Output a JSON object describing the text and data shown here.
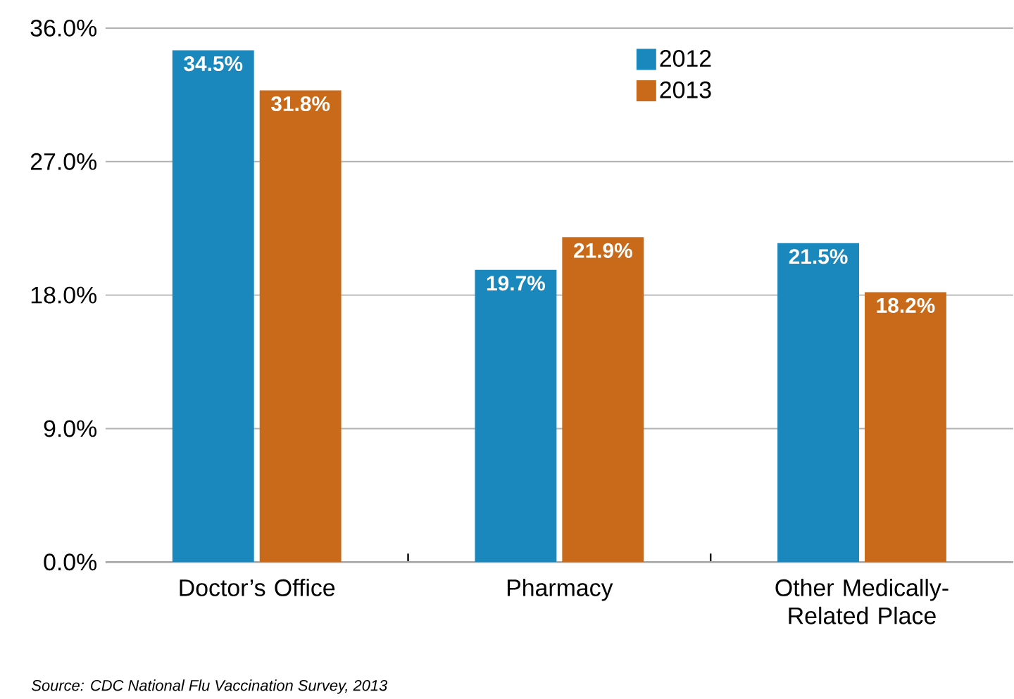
{
  "chart_data": {
    "type": "bar",
    "categories": [
      "Doctor’s Office",
      "Pharmacy",
      "Other Medically-Related Place"
    ],
    "series": [
      {
        "name": "2012",
        "color": "#1a88bd",
        "values": [
          34.5,
          19.7,
          21.5
        ],
        "value_labels": [
          "34.5%",
          "19.7%",
          "21.5%"
        ]
      },
      {
        "name": "2013",
        "color": "#c86a19",
        "values": [
          31.8,
          21.9,
          18.2
        ],
        "value_labels": [
          "31.8%",
          "21.9%",
          "18.2%"
        ]
      }
    ],
    "ylim": [
      0,
      36
    ],
    "yticks": [
      {
        "value": 0,
        "label": "0.0%"
      },
      {
        "value": 9,
        "label": "9.0%"
      },
      {
        "value": 18,
        "label": "18.0%"
      },
      {
        "value": 27,
        "label": "27.0%"
      },
      {
        "value": 36,
        "label": "36.0%"
      }
    ],
    "grid": "y",
    "legend": "top right",
    "annotations": [
      "Source: CDC National Flu Vaccination Survey, 2013"
    ]
  }
}
